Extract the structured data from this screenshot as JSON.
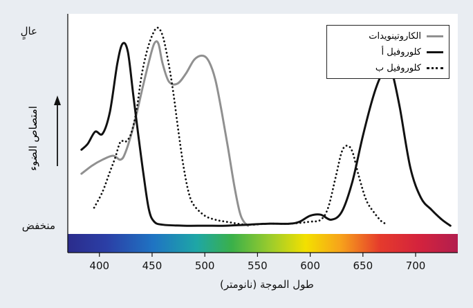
{
  "chart_data": {
    "type": "line",
    "ylabel_high": "عالٍ",
    "ylabel_low": "منخفض",
    "ylabel": "امتصاص الضوء",
    "xlabel": "طول الموجة (نانومتر)",
    "xlim": [
      370,
      740
    ],
    "ylim": [
      0,
      1
    ],
    "x_ticks": [
      400,
      450,
      500,
      550,
      600,
      650,
      700
    ],
    "legend_position": "top-right",
    "spectrum_bar": true,
    "series": [
      {
        "name": "الكاروتينويدات",
        "color": "#909090",
        "style": "solid",
        "points": [
          [
            383,
            0.27
          ],
          [
            393,
            0.31
          ],
          [
            403,
            0.34
          ],
          [
            413,
            0.36
          ],
          [
            420,
            0.34
          ],
          [
            425,
            0.38
          ],
          [
            433,
            0.52
          ],
          [
            441,
            0.7
          ],
          [
            447,
            0.83
          ],
          [
            452,
            0.92
          ],
          [
            456,
            0.92
          ],
          [
            460,
            0.82
          ],
          [
            466,
            0.73
          ],
          [
            474,
            0.72
          ],
          [
            482,
            0.77
          ],
          [
            490,
            0.84
          ],
          [
            498,
            0.86
          ],
          [
            504,
            0.83
          ],
          [
            510,
            0.74
          ],
          [
            516,
            0.58
          ],
          [
            522,
            0.4
          ],
          [
            528,
            0.21
          ],
          [
            533,
            0.08
          ],
          [
            537,
            0.03
          ],
          [
            541,
            0.01
          ]
        ]
      },
      {
        "name": "كلوروفيل أ",
        "color": "#111111",
        "style": "solid",
        "points": [
          [
            383,
            0.39
          ],
          [
            389,
            0.42
          ],
          [
            396,
            0.48
          ],
          [
            403,
            0.47
          ],
          [
            410,
            0.58
          ],
          [
            417,
            0.82
          ],
          [
            422,
            0.92
          ],
          [
            427,
            0.88
          ],
          [
            432,
            0.67
          ],
          [
            437,
            0.46
          ],
          [
            442,
            0.26
          ],
          [
            447,
            0.09
          ],
          [
            452,
            0.03
          ],
          [
            460,
            0.015
          ],
          [
            480,
            0.01
          ],
          [
            500,
            0.01
          ],
          [
            520,
            0.01
          ],
          [
            540,
            0.015
          ],
          [
            560,
            0.02
          ],
          [
            580,
            0.02
          ],
          [
            590,
            0.03
          ],
          [
            600,
            0.06
          ],
          [
            610,
            0.065
          ],
          [
            620,
            0.04
          ],
          [
            630,
            0.08
          ],
          [
            640,
            0.23
          ],
          [
            650,
            0.46
          ],
          [
            660,
            0.66
          ],
          [
            668,
            0.77
          ],
          [
            673,
            0.8
          ],
          [
            678,
            0.77
          ],
          [
            685,
            0.6
          ],
          [
            695,
            0.3
          ],
          [
            705,
            0.15
          ],
          [
            715,
            0.09
          ],
          [
            725,
            0.04
          ],
          [
            733,
            0.01
          ]
        ]
      },
      {
        "name": "كلوروفيل ب",
        "color": "#111111",
        "style": "dotted",
        "points": [
          [
            395,
            0.1
          ],
          [
            403,
            0.18
          ],
          [
            410,
            0.28
          ],
          [
            415,
            0.35
          ],
          [
            420,
            0.43
          ],
          [
            425,
            0.43
          ],
          [
            430,
            0.47
          ],
          [
            435,
            0.58
          ],
          [
            440,
            0.76
          ],
          [
            445,
            0.88
          ],
          [
            450,
            0.96
          ],
          [
            455,
            1.0
          ],
          [
            460,
            0.96
          ],
          [
            465,
            0.84
          ],
          [
            470,
            0.68
          ],
          [
            475,
            0.48
          ],
          [
            480,
            0.3
          ],
          [
            485,
            0.17
          ],
          [
            490,
            0.11
          ],
          [
            500,
            0.06
          ],
          [
            510,
            0.04
          ],
          [
            520,
            0.03
          ],
          [
            540,
            0.015
          ],
          [
            560,
            0.02
          ],
          [
            580,
            0.02
          ],
          [
            600,
            0.03
          ],
          [
            610,
            0.04
          ],
          [
            617,
            0.1
          ],
          [
            624,
            0.25
          ],
          [
            630,
            0.38
          ],
          [
            635,
            0.41
          ],
          [
            640,
            0.38
          ],
          [
            646,
            0.26
          ],
          [
            653,
            0.14
          ],
          [
            660,
            0.08
          ],
          [
            668,
            0.03
          ],
          [
            673,
            0.02
          ]
        ]
      }
    ]
  }
}
